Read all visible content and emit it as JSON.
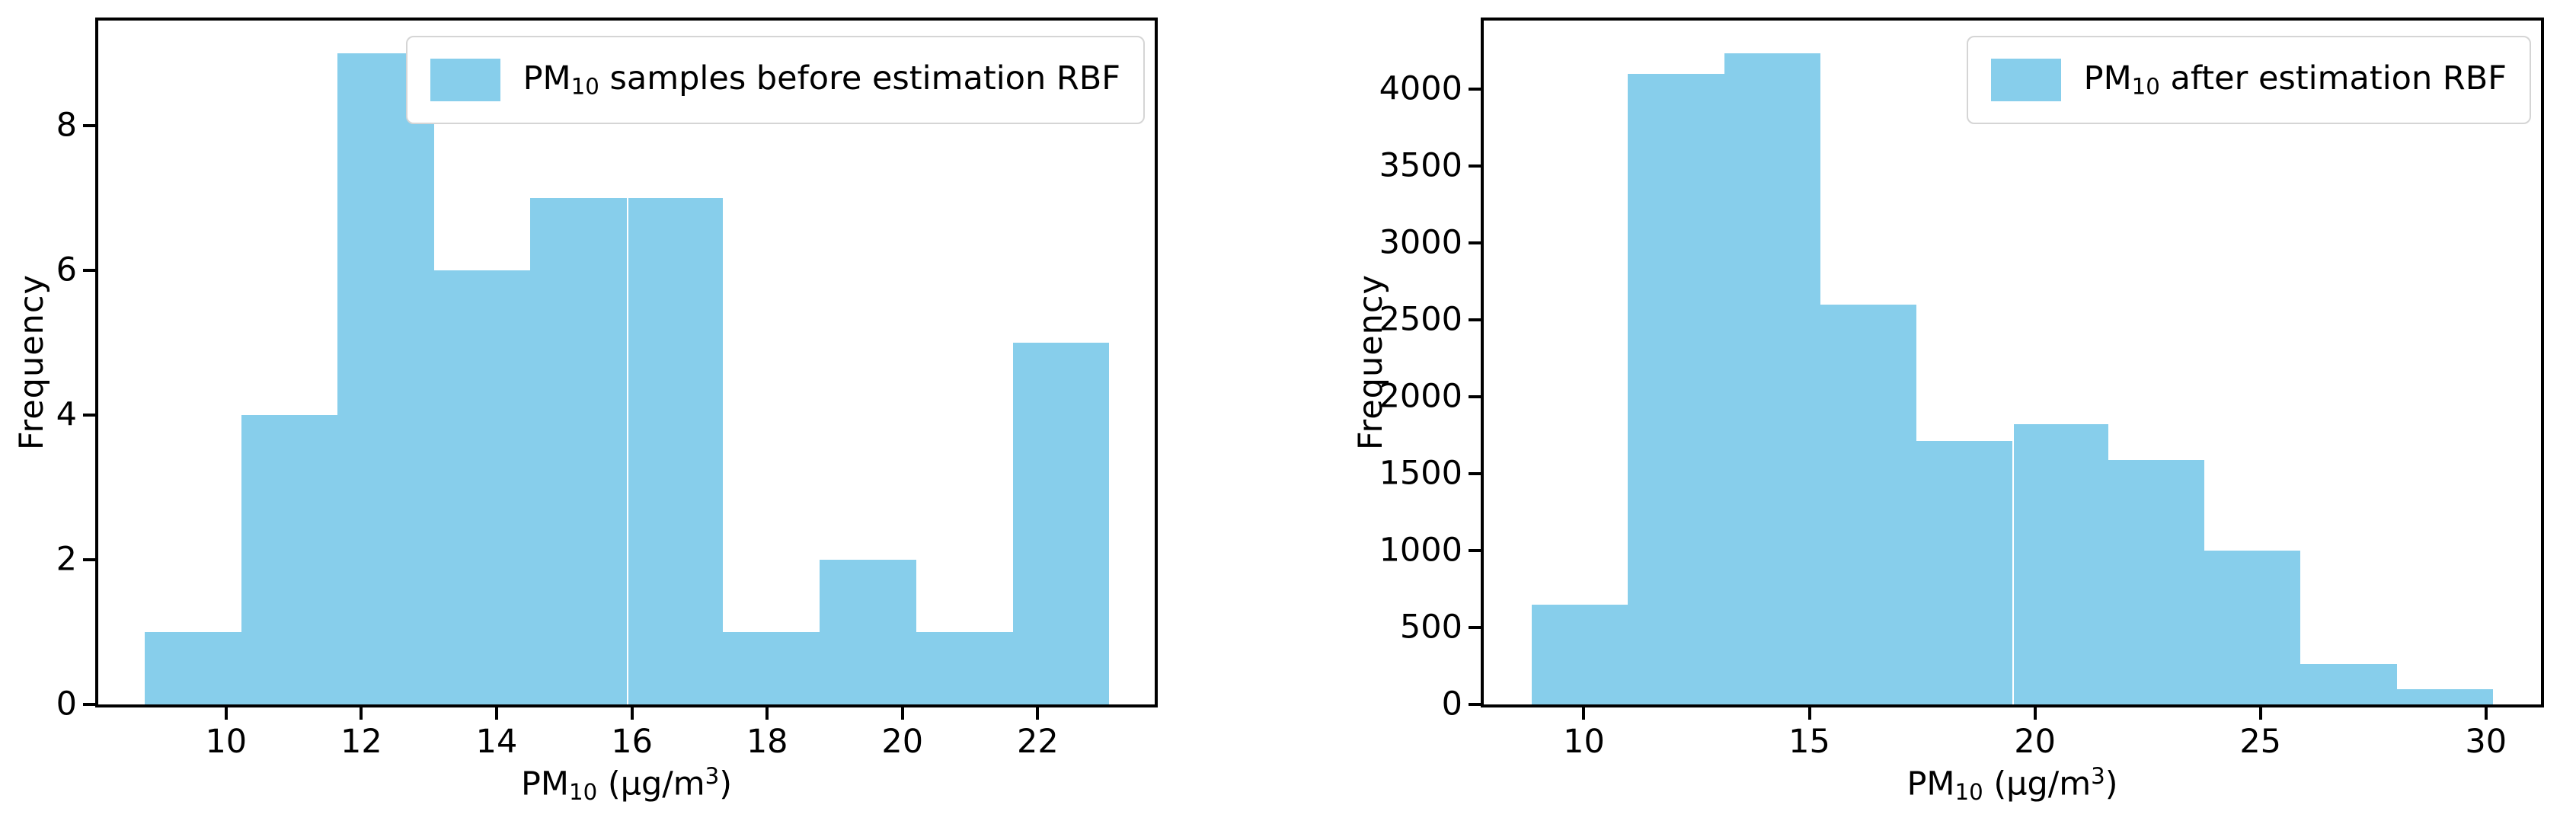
{
  "background": "#ffffff",
  "bar_color": "#87CEEB",
  "text_color": "#000000",
  "legend_edge_color": "#d5d5d5",
  "chart_data": [
    {
      "type": "bar",
      "subtype": "histogram",
      "title": "",
      "ylabel": "Frequency",
      "xlabel": "PM10 (μg/m3)",
      "xlabel_parts": {
        "pm": "PM",
        "pm_sub": "10",
        "mid": " (μg/m",
        "exp": "3",
        "close": ")"
      },
      "legend_label": "PM10 samples before estimation RBF",
      "legend_parts": {
        "pm": "PM",
        "pm_sub": "10",
        "rest": " samples before estimation RBF"
      },
      "legend_position": "upper right",
      "grid": false,
      "bin_edges": [
        8.8,
        10.23,
        11.65,
        13.08,
        14.5,
        15.93,
        17.35,
        18.78,
        20.2,
        21.63,
        23.05
      ],
      "counts": [
        1,
        4,
        9,
        6,
        7,
        7,
        1,
        2,
        1,
        5
      ],
      "xticks": [
        10,
        12,
        14,
        16,
        18,
        20,
        22
      ],
      "yticks": [
        0,
        2,
        4,
        6,
        8
      ],
      "xlim": [
        8.11,
        23.73
      ],
      "ylim": [
        0,
        9.45
      ],
      "seam_edge_index": 5
    },
    {
      "type": "bar",
      "subtype": "histogram",
      "title": "",
      "ylabel": "Frequency",
      "xlabel": "PM10 (μg/m3)",
      "xlabel_parts": {
        "pm": "PM",
        "pm_sub": "10",
        "mid": " (μg/m",
        "exp": "3",
        "close": ")"
      },
      "legend_label": "PM10 after estimation RBF",
      "legend_parts": {
        "pm": "PM",
        "pm_sub": "10",
        "rest": " after estimation RBF"
      },
      "legend_position": "upper right",
      "grid": false,
      "bin_edges": [
        8.85,
        10.98,
        13.11,
        15.24,
        17.37,
        19.5,
        21.63,
        23.76,
        25.89,
        28.02,
        30.15
      ],
      "counts": [
        650,
        4100,
        4230,
        2600,
        1715,
        1820,
        1590,
        1000,
        260,
        100
      ],
      "xticks": [
        10,
        15,
        20,
        25,
        30
      ],
      "yticks": [
        0,
        500,
        1000,
        1500,
        2000,
        2500,
        3000,
        3500,
        4000
      ],
      "xlim": [
        7.78,
        31.22
      ],
      "ylim": [
        0,
        4445
      ],
      "seam_edge_index": 5
    }
  ]
}
